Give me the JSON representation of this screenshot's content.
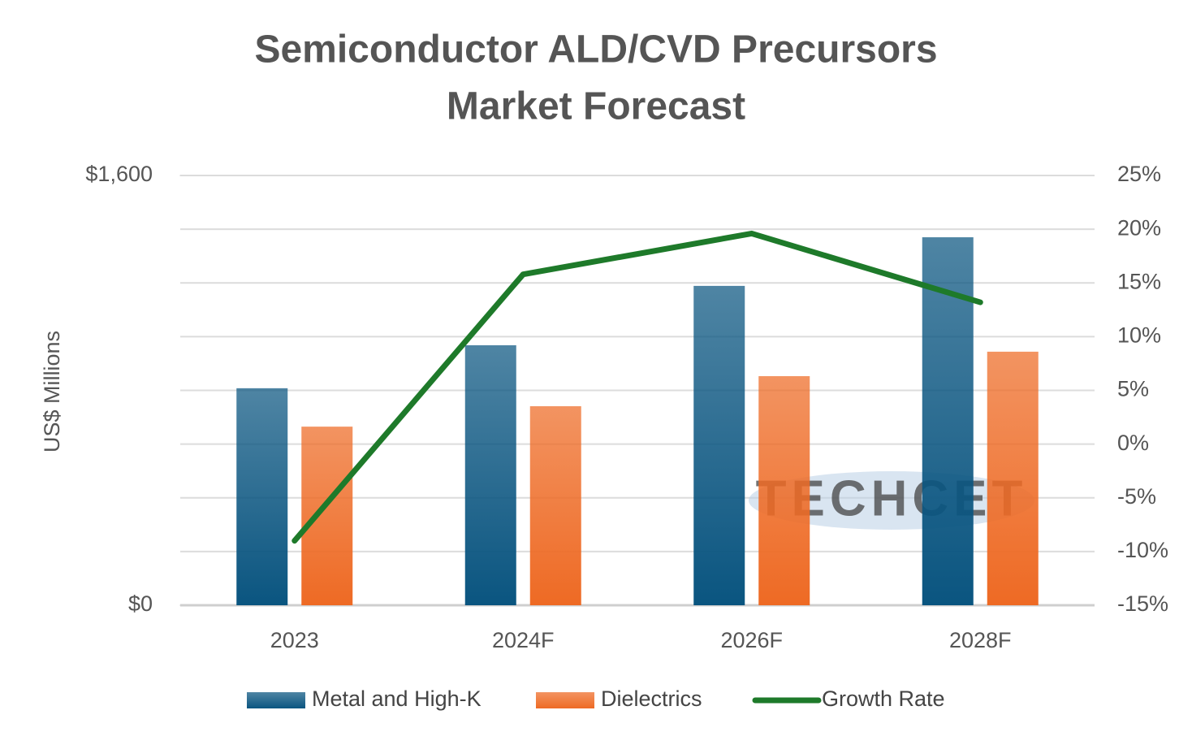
{
  "chart_data": {
    "type": "bar-line",
    "title": [
      "Semiconductor ALD/CVD Precursors",
      "Market Forecast"
    ],
    "y_label": "US$ Millions",
    "watermark": "TECHCET",
    "categories": [
      "2023",
      "2024F",
      "2026F",
      "2028F"
    ],
    "series": [
      {
        "name": "Metal and High-K",
        "type": "bar",
        "color": "#0a5580",
        "values": [
          808,
          968,
          1189,
          1370
        ]
      },
      {
        "name": "Dielectrics",
        "type": "bar",
        "color": "#ee6a24",
        "values": [
          665,
          741,
          853,
          944
        ]
      },
      {
        "name": "Growth Rate",
        "type": "line",
        "axis": "y2",
        "color": "#1e7a2a",
        "values": [
          -9.0,
          15.8,
          19.6,
          13.2
        ]
      }
    ],
    "ylim": [
      0,
      1600
    ],
    "yticks": [
      {
        "value": 0,
        "label": "$0"
      },
      {
        "value": 1600,
        "label": "$1,600"
      }
    ],
    "y2lim": [
      -15,
      25
    ],
    "y2ticks": [
      {
        "value": -15,
        "label": "-15%"
      },
      {
        "value": -10,
        "label": "-10%"
      },
      {
        "value": -5,
        "label": "-5%"
      },
      {
        "value": 0,
        "label": "0%"
      },
      {
        "value": 5,
        "label": "5%"
      },
      {
        "value": 10,
        "label": "10%"
      },
      {
        "value": 15,
        "label": "15%"
      },
      {
        "value": 20,
        "label": "20%"
      },
      {
        "value": 25,
        "label": "25%"
      }
    ],
    "grid": true,
    "legend": "bottom"
  }
}
